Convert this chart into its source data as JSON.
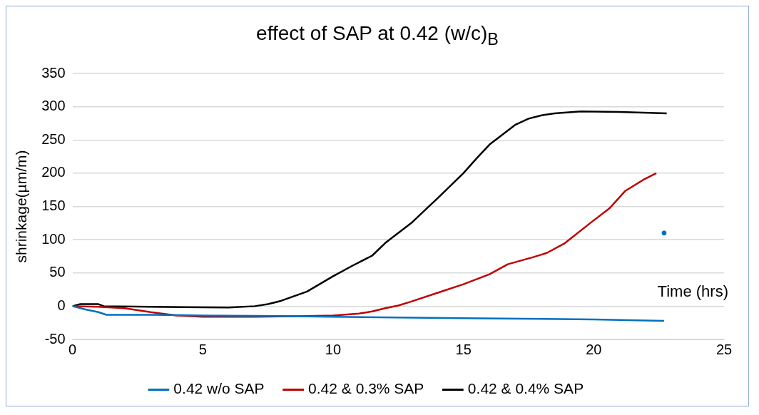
{
  "chart_data": {
    "type": "line",
    "title": "effect of SAP at 0.42 (w/c)$_{B}$",
    "xlabel": "Time (hrs)",
    "ylabel": "shrinkage(µm/m)",
    "xlim": [
      0,
      25
    ],
    "xticks": [
      0,
      5,
      10,
      15,
      20,
      25
    ],
    "ylim": [
      -50,
      350
    ],
    "yticks": [
      -50,
      0,
      50,
      100,
      150,
      200,
      250,
      300,
      350
    ],
    "grid": "y",
    "legend": "bottom",
    "marker": "none",
    "line_style": "solid",
    "series": [
      {
        "name": "0.42 w/o SAP",
        "color": "#0070c0",
        "x": [
          0,
          0.5,
          1,
          1.3,
          3,
          5,
          8,
          10,
          15,
          20,
          22.7
        ],
        "values": [
          0,
          -5,
          -9,
          -13,
          -13,
          -14,
          -15,
          -16,
          -18,
          -20,
          -22
        ]
      },
      {
        "name": "0.42 & 0.3% SAP",
        "color": "#c00000",
        "x": [
          0,
          1,
          2,
          3,
          4,
          5,
          7,
          9,
          10,
          11,
          11.5,
          12,
          12.5,
          13,
          14,
          15,
          16,
          16.7,
          17.7,
          18.2,
          18.9,
          19.9,
          20.6,
          21.2,
          21.9,
          22.4
        ],
        "values": [
          0,
          -1,
          -3,
          -9,
          -14,
          -16,
          -16,
          -15,
          -14,
          -11,
          -8,
          -3,
          1,
          7,
          20,
          33,
          48,
          63,
          74,
          80,
          95,
          126,
          147,
          173,
          190,
          200
        ]
      },
      {
        "name": "0.42 & 0.4% SAP",
        "color": "#000000",
        "x": [
          0,
          0.3,
          1,
          1.2,
          3,
          6,
          7,
          7.5,
          8,
          9,
          10,
          10.75,
          11.5,
          12,
          13,
          13.7,
          14,
          15,
          15.5,
          16,
          16.5,
          17,
          17.5,
          18,
          18.5,
          19.5,
          21,
          22.8
        ],
        "values": [
          0,
          3,
          3,
          0,
          -1,
          -2,
          0,
          3,
          8,
          22,
          45,
          61,
          76,
          95,
          125,
          151,
          162,
          200,
          222,
          243,
          258,
          273,
          282,
          287,
          290,
          293,
          292,
          290
        ]
      },
      {
        "type": "scatter",
        "marker": "circle",
        "color": "#0070c0",
        "x": [
          22.7
        ],
        "values": [
          110
        ]
      }
    ]
  }
}
